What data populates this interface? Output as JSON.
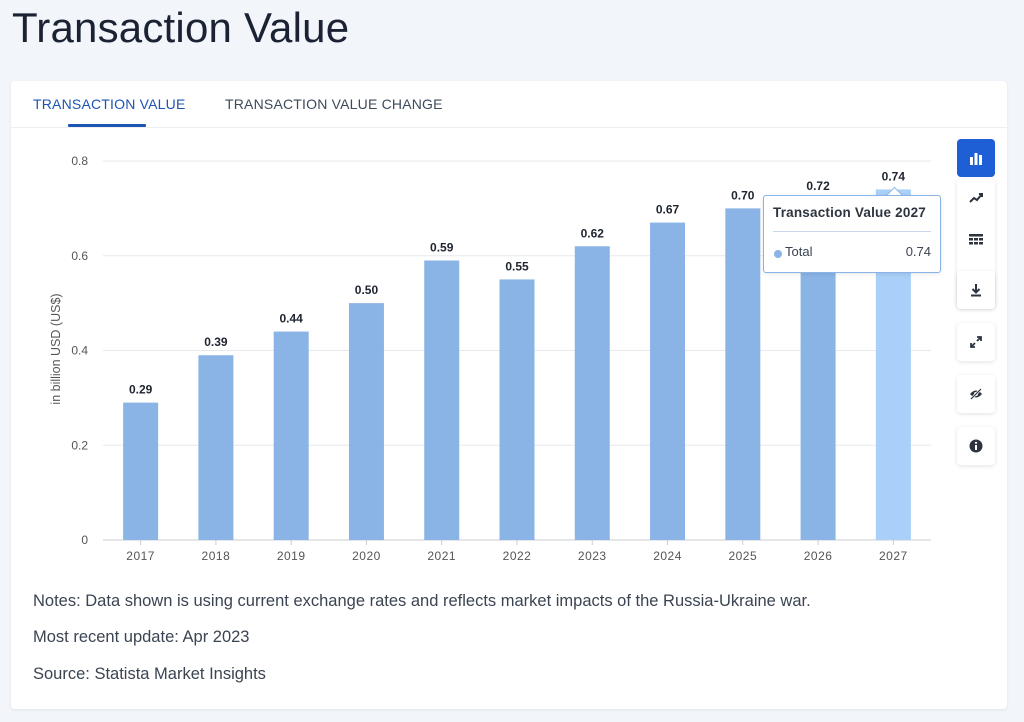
{
  "page": {
    "title": "Transaction Value"
  },
  "tabs": [
    {
      "label": "TRANSACTION VALUE"
    },
    {
      "label": "TRANSACTION VALUE CHANGE"
    }
  ],
  "colors": {
    "bar": "#8ab4e6",
    "bar_highlight": "#a8d0f8",
    "grid": "#e6e9ee",
    "tab_active": "#1d55b3",
    "tool_active": "#1f5fd6"
  },
  "toolbar": {
    "icons": [
      "bar-chart-icon",
      "trend-line-icon",
      "table-icon",
      "download-icon",
      "expand-icon",
      "hide-icon",
      "info-icon"
    ]
  },
  "chart_data": {
    "type": "bar",
    "title": "Transaction Value",
    "categories": [
      "2017",
      "2018",
      "2019",
      "2020",
      "2021",
      "2022",
      "2023",
      "2024",
      "2025",
      "2026",
      "2027"
    ],
    "values": [
      0.29,
      0.39,
      0.44,
      0.5,
      0.59,
      0.55,
      0.62,
      0.67,
      0.7,
      0.72,
      0.74
    ],
    "value_labels": [
      "0.29",
      "0.39",
      "0.44",
      "0.50",
      "0.59",
      "0.55",
      "0.62",
      "0.67",
      "0.70",
      "0.72",
      "0.74"
    ],
    "ylabel": "in billion USD (US$)",
    "xlabel": "",
    "ylim": [
      0,
      0.8
    ],
    "yticks": [
      0,
      0.2,
      0.4,
      0.6,
      0.8
    ],
    "ytick_labels": [
      "0",
      "0.2",
      "0.4",
      "0.6",
      "0.8"
    ],
    "grid": true,
    "highlighted_index": 10
  },
  "tooltip": {
    "title": "Transaction Value 2027",
    "series": "Total",
    "value": "0.74"
  },
  "notes": {
    "line1": "Notes: Data shown is using current exchange rates and reflects market impacts of the Russia-Ukraine war.",
    "line2": "Most recent update: Apr 2023",
    "line3": "Source: Statista Market Insights"
  }
}
